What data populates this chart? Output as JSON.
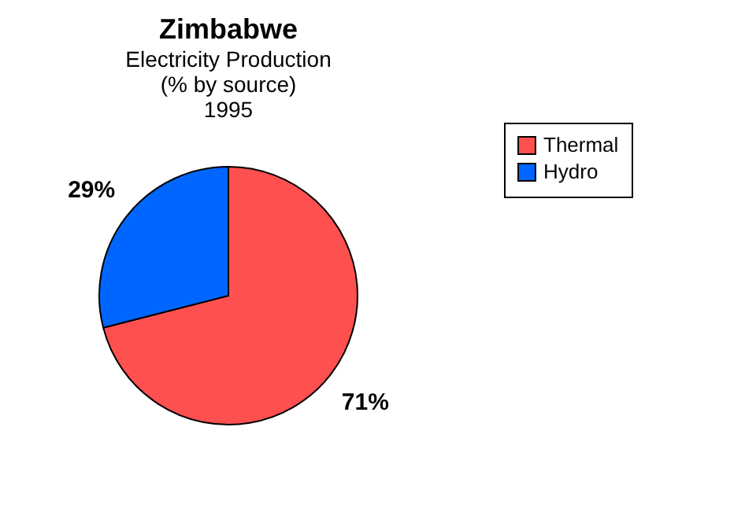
{
  "chart_data": {
    "type": "pie",
    "title": "Zimbabwe",
    "subtitle": "Electricity Production\n(% by source)\n1995",
    "categories": [
      "Thermal",
      "Hydro"
    ],
    "values": [
      71,
      29
    ],
    "colors": [
      "#ff5050",
      "#0066ff"
    ],
    "value_labels": [
      "71%",
      "29%"
    ],
    "legend": "right"
  }
}
